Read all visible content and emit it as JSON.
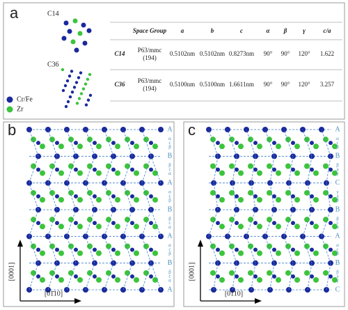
{
  "panel_a": {
    "label": "a",
    "structures": [
      "C14",
      "C36"
    ],
    "legend": [
      "Cr/Fe",
      "Zr"
    ],
    "table": {
      "header": [
        "Space Group",
        "a",
        "b",
        "c",
        "α",
        "β",
        "γ",
        "c/a"
      ],
      "rows": [
        {
          "name": "C14",
          "space_group": [
            "P63/mmc",
            "(194)"
          ],
          "params": [
            "0.5102nm",
            "0.5102nm",
            "0.8273nm",
            "90°",
            "90°",
            "120°",
            "1.622"
          ]
        },
        {
          "name": "C36",
          "space_group": [
            "P63/mmc",
            "(194)"
          ],
          "params": [
            "0.5100nm",
            "0.5100nm",
            "1.6611nm",
            "90°",
            "90°",
            "120°",
            "3.257"
          ]
        }
      ]
    }
  },
  "panel_b": {
    "label": "b",
    "y_axis": "[0001]",
    "x_axis": "[01̄10]",
    "stacking": [
      "A",
      [
        "α",
        "c",
        "β"
      ],
      "B",
      [
        "β",
        "c",
        "α"
      ],
      "A",
      [
        "α",
        "c",
        "β"
      ],
      "B",
      [
        "β",
        "c",
        "α"
      ],
      "A",
      [
        "α",
        "c",
        "β"
      ],
      "B",
      [
        "β",
        "c",
        "α"
      ],
      "A"
    ]
  },
  "panel_c": {
    "label": "c",
    "y_axis": "[0001]",
    "x_axis": "[01̄10]",
    "stacking": [
      "A",
      [
        "α",
        "c",
        "β"
      ],
      "B",
      [
        "β",
        "a",
        "γ"
      ],
      "C",
      [
        "γ",
        "a",
        "β"
      ],
      "B",
      [
        "β",
        "c",
        "α"
      ],
      "A",
      [
        "α",
        "c",
        "β"
      ],
      "B",
      [
        "β",
        "a",
        "γ"
      ],
      "C"
    ]
  }
}
